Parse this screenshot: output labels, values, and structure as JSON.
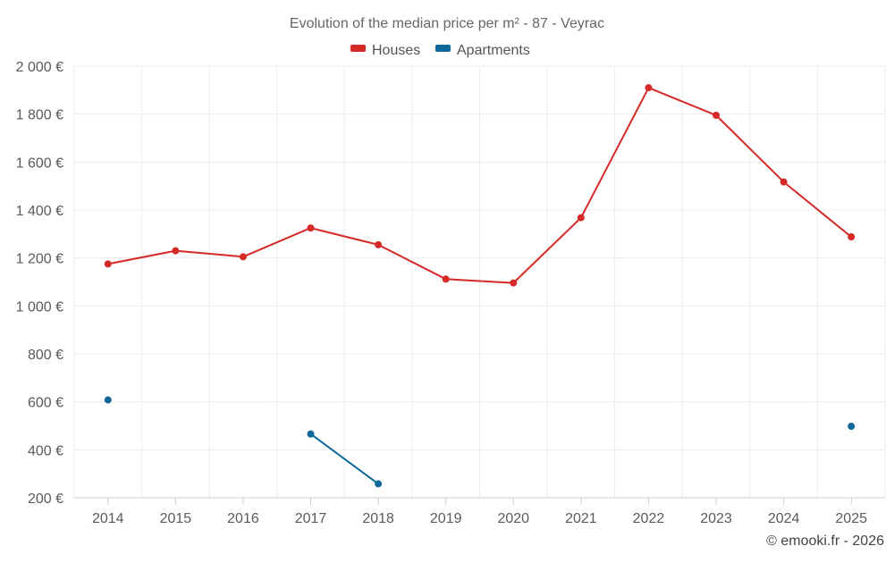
{
  "chart_data": {
    "type": "line",
    "title": "Evolution of the median price per m² - 87 - Veyrac",
    "xlabel": "",
    "ylabel": "",
    "categories": [
      "2014",
      "2015",
      "2016",
      "2017",
      "2018",
      "2019",
      "2020",
      "2021",
      "2022",
      "2023",
      "2024",
      "2025"
    ],
    "ylim": [
      200,
      2000
    ],
    "yticks": [
      200,
      400,
      600,
      800,
      1000,
      1200,
      1400,
      1600,
      1800,
      2000
    ],
    "ytick_labels": [
      "200 €",
      "400 €",
      "600 €",
      "800 €",
      "1 000 €",
      "1 200 €",
      "1 400 €",
      "1 600 €",
      "1 800 €",
      "2 000 €"
    ],
    "grid": true,
    "legend_position": "top-center",
    "series": [
      {
        "name": "Houses",
        "color": "#d62a28",
        "values": [
          1175,
          1230,
          1205,
          1325,
          1255,
          1112,
          1096,
          1368,
          1910,
          1795,
          1517,
          1288
        ]
      },
      {
        "name": "Apartments",
        "color": "#0f679a",
        "values": [
          608,
          null,
          null,
          466,
          258,
          null,
          null,
          null,
          null,
          null,
          null,
          498
        ]
      }
    ]
  },
  "credit": "© emooki.fr - 2026"
}
